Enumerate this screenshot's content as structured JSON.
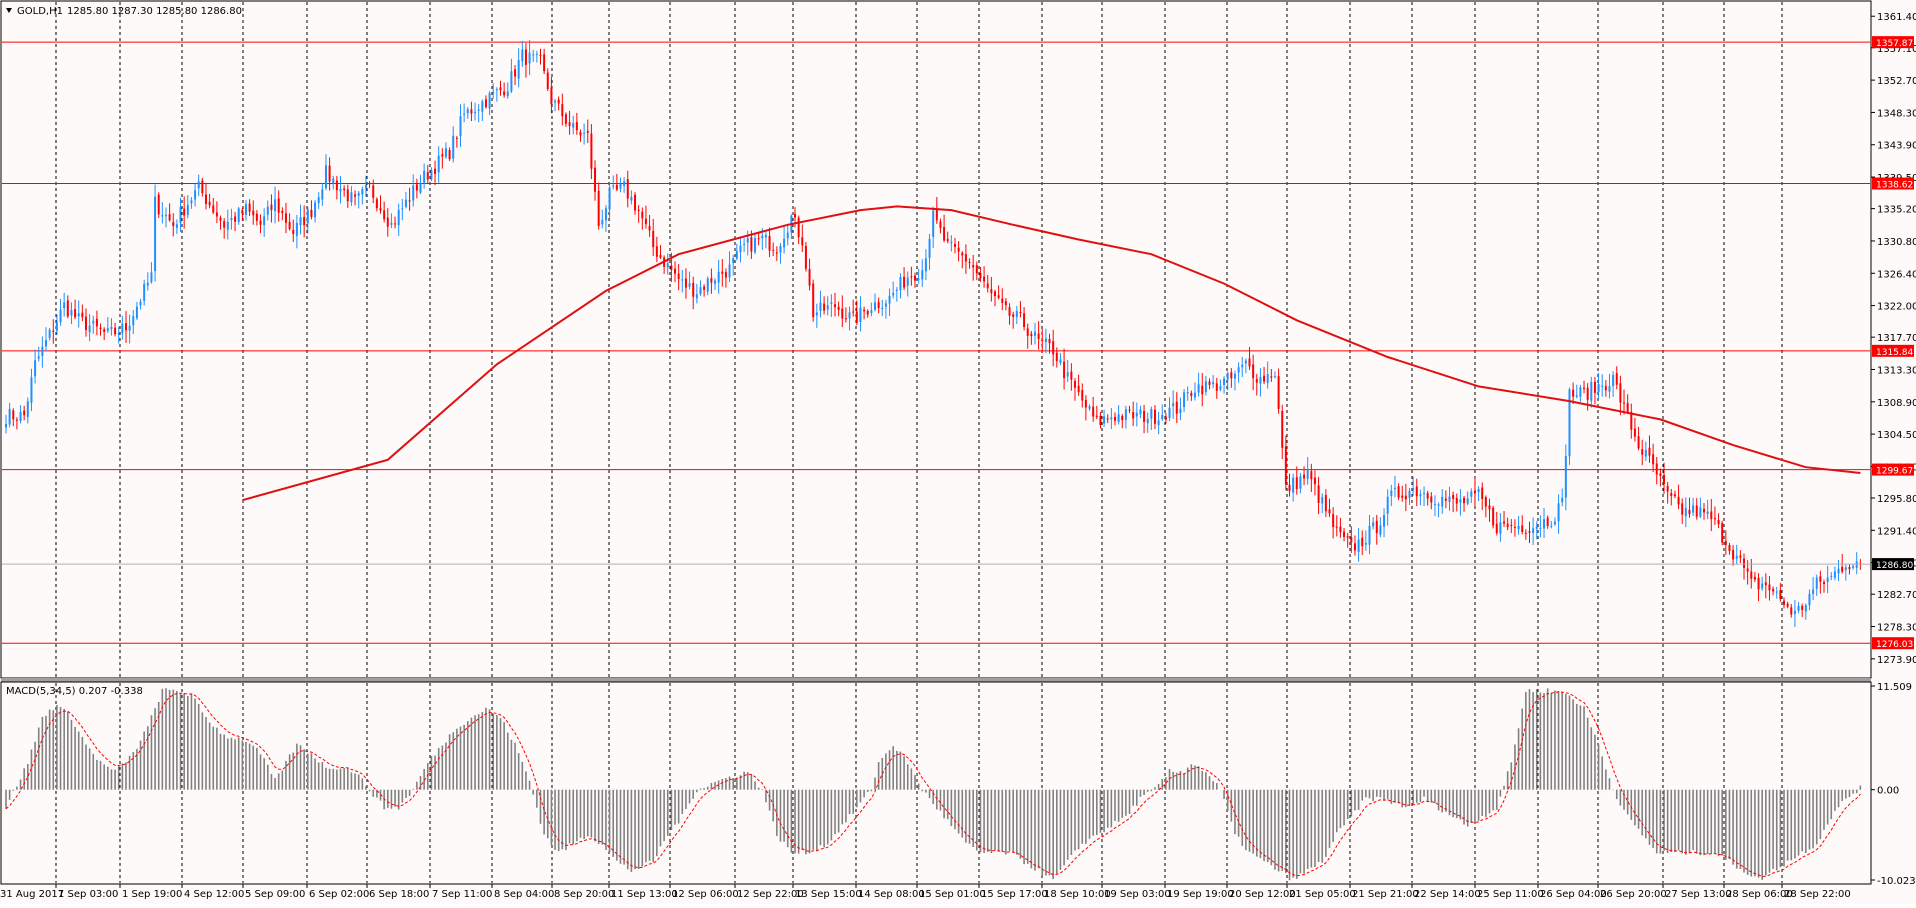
{
  "header": {
    "symbol_label": "GOLD,H1",
    "ohlc": "1285.80 1287.30 1285.80 1286.80",
    "macd_label": "MACD(5,34,5) 0.207 -0.338"
  },
  "icons": {
    "menu": "dropdown-triangle-icon"
  },
  "colors": {
    "background": "#fffafa",
    "bull": "#1e90ff",
    "bear": "#ff0000",
    "ma_line": "#e01010",
    "level_line": "#ff0000",
    "histogram": "#808080",
    "signal": "#ff0000"
  },
  "chart_data": [
    {
      "type": "candlestick",
      "symbol": "GOLD",
      "timeframe": "H1",
      "last_price": 1286.8,
      "ylim": [
        1271.7,
        1363.2
      ],
      "y_ticks": [
        "1361.40",
        "1357.10",
        "1352.70",
        "1348.30",
        "1343.90",
        "1339.50",
        "1335.20",
        "1330.80",
        "1326.40",
        "1322.00",
        "1317.70",
        "1313.30",
        "1308.90",
        "1304.50",
        "1300.10",
        "1295.80",
        "1291.40",
        "1287.00",
        "1282.70",
        "1278.30",
        "1273.90"
      ],
      "x_ticks": [
        "31 Aug 2017",
        "1 Sep 03:00",
        "1 Sep 19:00",
        "4 Sep 12:00",
        "5 Sep 09:00",
        "6 Sep 02:00",
        "6 Sep 18:00",
        "7 Sep 11:00",
        "8 Sep 04:00",
        "8 Sep 20:00",
        "11 Sep 13:00",
        "12 Sep 06:00",
        "12 Sep 22:00",
        "13 Sep 15:00",
        "14 Sep 08:00",
        "15 Sep 01:00",
        "15 Sep 17:00",
        "18 Sep 10:00",
        "19 Sep 03:00",
        "19 Sep 19:00",
        "20 Sep 12:00",
        "21 Sep 05:00",
        "21 Sep 21:00",
        "22 Sep 14:00",
        "25 Sep 11:00",
        "26 Sep 04:00",
        "26 Sep 20:00",
        "27 Sep 13:00",
        "28 Sep 06:00",
        "28 Sep 22:00"
      ],
      "levels": [
        {
          "value": 1357.87,
          "label": "1357.87"
        },
        {
          "value": 1338.62,
          "label": "1338.62"
        },
        {
          "value": 1315.84,
          "label": "1315.84"
        },
        {
          "value": 1299.67,
          "label": "1299.67"
        },
        {
          "value": 1276.03,
          "label": "1276.03"
        }
      ],
      "current_price_label": "1286.80",
      "close_path": [
        [
          0,
          1307
        ],
        [
          5,
          1307
        ],
        [
          8,
          1314
        ],
        [
          12,
          1318
        ],
        [
          16,
          1322
        ],
        [
          20,
          1320
        ],
        [
          28,
          1318
        ],
        [
          33,
          1319
        ],
        [
          36,
          1322
        ],
        [
          40,
          1326
        ],
        [
          41,
          1336
        ],
        [
          46,
          1333
        ],
        [
          50,
          1336
        ],
        [
          53,
          1338
        ],
        [
          60,
          1333
        ],
        [
          66,
          1335
        ],
        [
          70,
          1333
        ],
        [
          74,
          1336
        ],
        [
          79,
          1332
        ],
        [
          84,
          1335
        ],
        [
          88,
          1340
        ],
        [
          92,
          1338
        ],
        [
          96,
          1336
        ],
        [
          100,
          1338
        ],
        [
          106,
          1333
        ],
        [
          110,
          1336
        ],
        [
          114,
          1339
        ],
        [
          118,
          1341
        ],
        [
          122,
          1343
        ],
        [
          126,
          1348
        ],
        [
          132,
          1350
        ],
        [
          138,
          1352
        ],
        [
          142,
          1356
        ],
        [
          147,
          1355
        ],
        [
          150,
          1350
        ],
        [
          156,
          1346
        ],
        [
          160,
          1345
        ],
        [
          163,
          1333
        ],
        [
          166,
          1337
        ],
        [
          170,
          1338
        ],
        [
          174,
          1335
        ],
        [
          178,
          1330
        ],
        [
          181,
          1328
        ],
        [
          186,
          1325
        ],
        [
          190,
          1324
        ],
        [
          195,
          1326
        ],
        [
          199,
          1327
        ],
        [
          203,
          1330
        ],
        [
          208,
          1331
        ],
        [
          212,
          1330
        ],
        [
          216,
          1334
        ],
        [
          219,
          1331
        ],
        [
          222,
          1321
        ],
        [
          228,
          1322
        ],
        [
          233,
          1320
        ],
        [
          238,
          1322
        ],
        [
          243,
          1323
        ],
        [
          248,
          1326
        ],
        [
          252,
          1327
        ],
        [
          255,
          1334
        ],
        [
          259,
          1330
        ],
        [
          265,
          1328
        ],
        [
          270,
          1324
        ],
        [
          275,
          1321
        ],
        [
          279,
          1320
        ],
        [
          284,
          1317
        ],
        [
          288,
          1316
        ],
        [
          292,
          1312
        ],
        [
          296,
          1309
        ],
        [
          300,
          1306
        ],
        [
          304,
          1307
        ],
        [
          310,
          1307
        ],
        [
          316,
          1307
        ],
        [
          322,
          1308
        ],
        [
          327,
          1311
        ],
        [
          332,
          1311
        ],
        [
          337,
          1312
        ],
        [
          341,
          1314
        ],
        [
          345,
          1312
        ],
        [
          349,
          1313
        ],
        [
          352,
          1297
        ],
        [
          358,
          1299
        ],
        [
          362,
          1295
        ],
        [
          366,
          1291
        ],
        [
          370,
          1289
        ],
        [
          373,
          1290
        ],
        [
          377,
          1292
        ],
        [
          381,
          1296
        ],
        [
          387,
          1297
        ],
        [
          393,
          1296
        ],
        [
          399,
          1295
        ],
        [
          405,
          1296
        ],
        [
          410,
          1292
        ],
        [
          415,
          1292
        ],
        [
          420,
          1292
        ],
        [
          425,
          1293
        ],
        [
          428,
          1295
        ],
        [
          430,
          1310
        ],
        [
          434,
          1310
        ],
        [
          438,
          1311
        ],
        [
          442,
          1312
        ],
        [
          445,
          1308
        ],
        [
          449,
          1303
        ],
        [
          453,
          1300
        ],
        [
          457,
          1296
        ],
        [
          461,
          1294
        ],
        [
          465,
          1294
        ],
        [
          469,
          1293
        ],
        [
          473,
          1290
        ],
        [
          477,
          1287
        ],
        [
          480,
          1284
        ],
        [
          484,
          1284
        ],
        [
          488,
          1282
        ],
        [
          492,
          1280
        ],
        [
          494,
          1281
        ],
        [
          498,
          1284
        ],
        [
          502,
          1285
        ],
        [
          506,
          1287
        ],
        [
          510,
          1286.8
        ]
      ],
      "ma200": [
        [
          0,
          1295.5
        ],
        [
          40,
          1301
        ],
        [
          70,
          1314
        ],
        [
          100,
          1324
        ],
        [
          120,
          1329
        ],
        [
          150,
          1333
        ],
        [
          170,
          1335
        ],
        [
          180,
          1335.5
        ],
        [
          195,
          1335
        ],
        [
          212,
          1333
        ],
        [
          230,
          1331
        ],
        [
          250,
          1329
        ],
        [
          270,
          1325
        ],
        [
          290,
          1320
        ],
        [
          315,
          1315
        ],
        [
          340,
          1311
        ],
        [
          365,
          1309
        ],
        [
          390,
          1306.5
        ],
        [
          410,
          1303
        ],
        [
          430,
          1300
        ],
        [
          445,
          1299.2
        ]
      ],
      "ma_offset_index": 65
    },
    {
      "type": "bar",
      "indicator": "MACD",
      "params": "5,34,5",
      "values_text": [
        "0.207",
        "-0.338"
      ],
      "ylim": [
        -10.023,
        11.509
      ],
      "y_ticks": [
        "11.509",
        "0.00",
        "-10.023"
      ],
      "macd_path": [
        [
          0,
          -2
        ],
        [
          6,
          3
        ],
        [
          10,
          8
        ],
        [
          14,
          9.5
        ],
        [
          18,
          8
        ],
        [
          22,
          5
        ],
        [
          26,
          3
        ],
        [
          30,
          2
        ],
        [
          35,
          4
        ],
        [
          39,
          7
        ],
        [
          43,
          11
        ],
        [
          47,
          11
        ],
        [
          51,
          10.5
        ],
        [
          55,
          8
        ],
        [
          60,
          6
        ],
        [
          66,
          5.5
        ],
        [
          70,
          4
        ],
        [
          74,
          1
        ],
        [
          80,
          5
        ],
        [
          84,
          4
        ],
        [
          88,
          2.5
        ],
        [
          92,
          2.5
        ],
        [
          96,
          2
        ],
        [
          100,
          0
        ],
        [
          104,
          -2
        ],
        [
          108,
          -2
        ],
        [
          112,
          0
        ],
        [
          116,
          3
        ],
        [
          120,
          5
        ],
        [
          124,
          7
        ],
        [
          128,
          8
        ],
        [
          132,
          9
        ],
        [
          136,
          8
        ],
        [
          140,
          5
        ],
        [
          144,
          1
        ],
        [
          148,
          -5
        ],
        [
          152,
          -7
        ],
        [
          156,
          -6
        ],
        [
          160,
          -5
        ],
        [
          164,
          -6
        ],
        [
          168,
          -8
        ],
        [
          172,
          -9
        ],
        [
          178,
          -8
        ],
        [
          182,
          -5
        ],
        [
          186,
          -3
        ],
        [
          190,
          0
        ],
        [
          196,
          1
        ],
        [
          200,
          1.5
        ],
        [
          204,
          2
        ],
        [
          208,
          0
        ],
        [
          212,
          -5
        ],
        [
          216,
          -7
        ],
        [
          220,
          -7
        ],
        [
          226,
          -6
        ],
        [
          230,
          -4
        ],
        [
          234,
          -2
        ],
        [
          238,
          0
        ],
        [
          240,
          3
        ],
        [
          244,
          5
        ],
        [
          248,
          3
        ],
        [
          252,
          0
        ],
        [
          256,
          -2
        ],
        [
          260,
          -4
        ],
        [
          264,
          -6
        ],
        [
          268,
          -7
        ],
        [
          272,
          -7
        ],
        [
          276,
          -7
        ],
        [
          280,
          -8
        ],
        [
          284,
          -9
        ],
        [
          288,
          -10
        ],
        [
          292,
          -8
        ],
        [
          296,
          -6
        ],
        [
          300,
          -5
        ],
        [
          304,
          -4
        ],
        [
          308,
          -3
        ],
        [
          312,
          -1
        ],
        [
          316,
          0
        ],
        [
          320,
          2
        ],
        [
          324,
          2
        ],
        [
          326,
          3
        ],
        [
          330,
          2
        ],
        [
          334,
          0
        ],
        [
          338,
          -5
        ],
        [
          342,
          -7
        ],
        [
          346,
          -8
        ],
        [
          350,
          -9
        ],
        [
          354,
          -10
        ],
        [
          358,
          -9
        ],
        [
          362,
          -8
        ],
        [
          366,
          -5
        ],
        [
          370,
          -3
        ],
        [
          374,
          -1
        ],
        [
          378,
          -1
        ],
        [
          382,
          -1.5
        ],
        [
          386,
          -2
        ],
        [
          390,
          -1
        ],
        [
          394,
          -2
        ],
        [
          398,
          -3
        ],
        [
          402,
          -4
        ],
        [
          406,
          -3
        ],
        [
          410,
          -2
        ],
        [
          414,
          3
        ],
        [
          418,
          11
        ],
        [
          422,
          11
        ],
        [
          426,
          11
        ],
        [
          430,
          10.5
        ],
        [
          434,
          9
        ],
        [
          438,
          5
        ],
        [
          442,
          0
        ],
        [
          446,
          -3
        ],
        [
          450,
          -5
        ],
        [
          454,
          -7
        ],
        [
          458,
          -7
        ],
        [
          462,
          -7
        ],
        [
          466,
          -7
        ],
        [
          470,
          -7
        ],
        [
          474,
          -8
        ],
        [
          478,
          -9
        ],
        [
          482,
          -10
        ],
        [
          486,
          -9
        ],
        [
          490,
          -8
        ],
        [
          494,
          -7
        ],
        [
          498,
          -6
        ],
        [
          502,
          -3
        ],
        [
          506,
          -1
        ],
        [
          510,
          0.2
        ]
      ]
    }
  ]
}
